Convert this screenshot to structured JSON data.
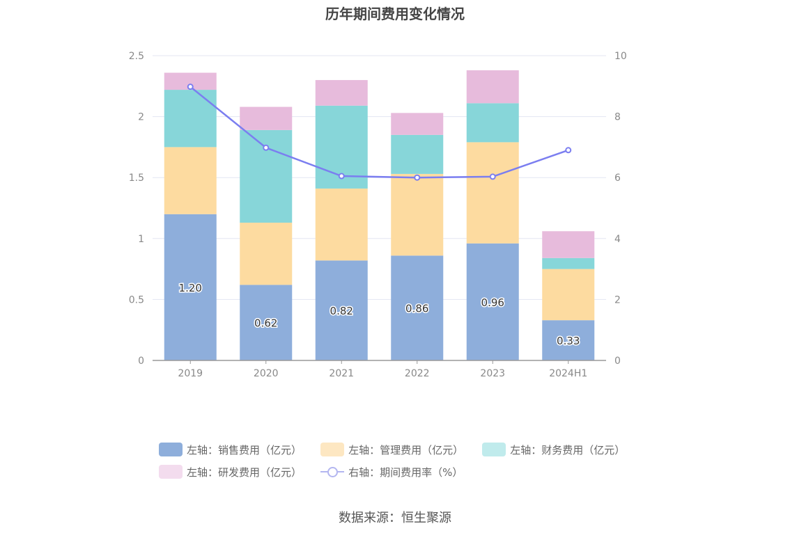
{
  "chart_data": {
    "type": "bar",
    "title": "历年期间费用变化情况",
    "categories": [
      "2019",
      "2020",
      "2021",
      "2022",
      "2023",
      "2024H1"
    ],
    "left_axis": {
      "ylim": [
        0,
        2.5
      ],
      "ticks": [
        "0",
        "0.5",
        "1",
        "1.5",
        "2",
        "2.5"
      ]
    },
    "right_axis": {
      "ylim": [
        0,
        10
      ],
      "ticks": [
        "0",
        "2",
        "4",
        "6",
        "8",
        "10"
      ]
    },
    "series": [
      {
        "name": "左轴：销售费用（亿元）",
        "type": "bar",
        "stack": true,
        "color": "#8eaedb",
        "values": [
          1.2,
          0.62,
          0.82,
          0.86,
          0.96,
          0.33
        ],
        "labels": [
          "1.20",
          "0.62",
          "0.82",
          "0.86",
          "0.96",
          "0.33"
        ]
      },
      {
        "name": "左轴：管理费用（亿元）",
        "type": "bar",
        "stack": true,
        "color": "#fddba0",
        "values": [
          0.55,
          0.51,
          0.59,
          0.67,
          0.83,
          0.42
        ]
      },
      {
        "name": "左轴：财务费用（亿元）",
        "type": "bar",
        "stack": true,
        "color": "#87d6d9",
        "values": [
          0.47,
          0.76,
          0.68,
          0.32,
          0.32,
          0.09
        ]
      },
      {
        "name": "左轴：研发费用（亿元）",
        "type": "bar",
        "stack": true,
        "color": "#e7bbdc",
        "values": [
          0.14,
          0.19,
          0.21,
          0.18,
          0.27,
          0.22
        ]
      },
      {
        "name": "右轴：期间费用率（%）",
        "type": "line",
        "axis": "right",
        "color": "#7b7ef0",
        "values": [
          8.98,
          6.98,
          6.05,
          6.0,
          6.03,
          6.9
        ]
      }
    ],
    "legend_placement": "bottom",
    "grid": true
  },
  "legend": [
    {
      "label": "左轴：销售费用（亿元）",
      "color": "#8eaedb",
      "kind": "bar"
    },
    {
      "label": "左轴：管理费用（亿元）",
      "color": "#fde7c2",
      "kind": "bar"
    },
    {
      "label": "左轴：财务费用（亿元）",
      "color": "#c0ebec",
      "kind": "bar"
    },
    {
      "label": "左轴：研发费用（亿元）",
      "color": "#f3dcee",
      "kind": "bar"
    },
    {
      "label": "右轴：期间费用率（%）",
      "color": "#b3b6f0",
      "kind": "line"
    }
  ],
  "source": "数据来源：恒生聚源"
}
